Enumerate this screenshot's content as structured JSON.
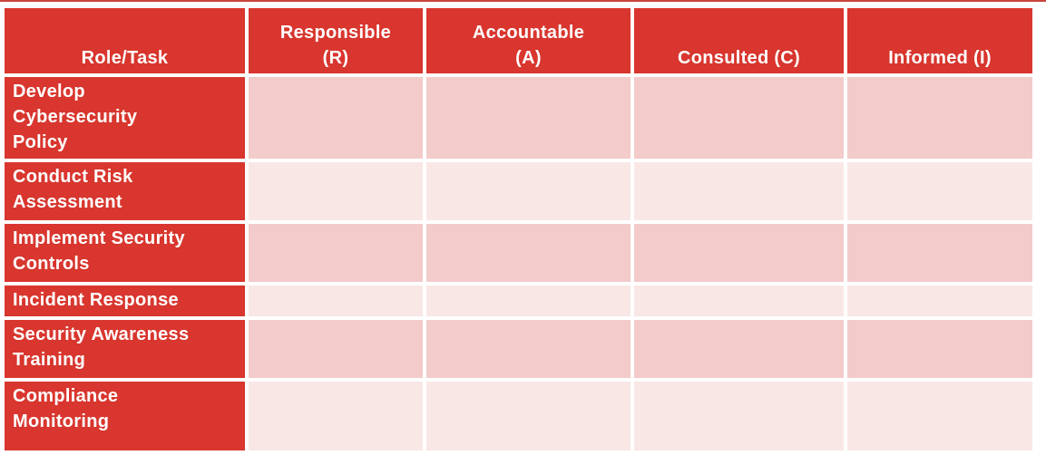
{
  "colors": {
    "red": "#D8362E",
    "pink_dark": "#F2CBCA",
    "pink_light": "#F9E7E6",
    "header_text": "#FFFFFF",
    "top_line": "#C9453E"
  },
  "table": {
    "headers": {
      "role_task": "Role/Task",
      "responsible": "Responsible\n(R)",
      "accountable": "Accountable\n(A)",
      "consulted": "Consulted (C)",
      "informed": "Informed (I)"
    },
    "rows": [
      {
        "task": "Develop\nCybersecurity\nPolicy",
        "responsible": "",
        "accountable": "",
        "consulted": "",
        "informed": ""
      },
      {
        "task": "Conduct Risk\nAssessment",
        "responsible": "",
        "accountable": "",
        "consulted": "",
        "informed": ""
      },
      {
        "task": "Implement Security\nControls",
        "responsible": "",
        "accountable": "",
        "consulted": "",
        "informed": ""
      },
      {
        "task": "Incident Response",
        "responsible": "",
        "accountable": "",
        "consulted": "",
        "informed": ""
      },
      {
        "task": "Security Awareness\nTraining",
        "responsible": "",
        "accountable": "",
        "consulted": "",
        "informed": ""
      },
      {
        "task": "Compliance\nMonitoring",
        "responsible": "",
        "accountable": "",
        "consulted": "",
        "informed": ""
      }
    ]
  }
}
